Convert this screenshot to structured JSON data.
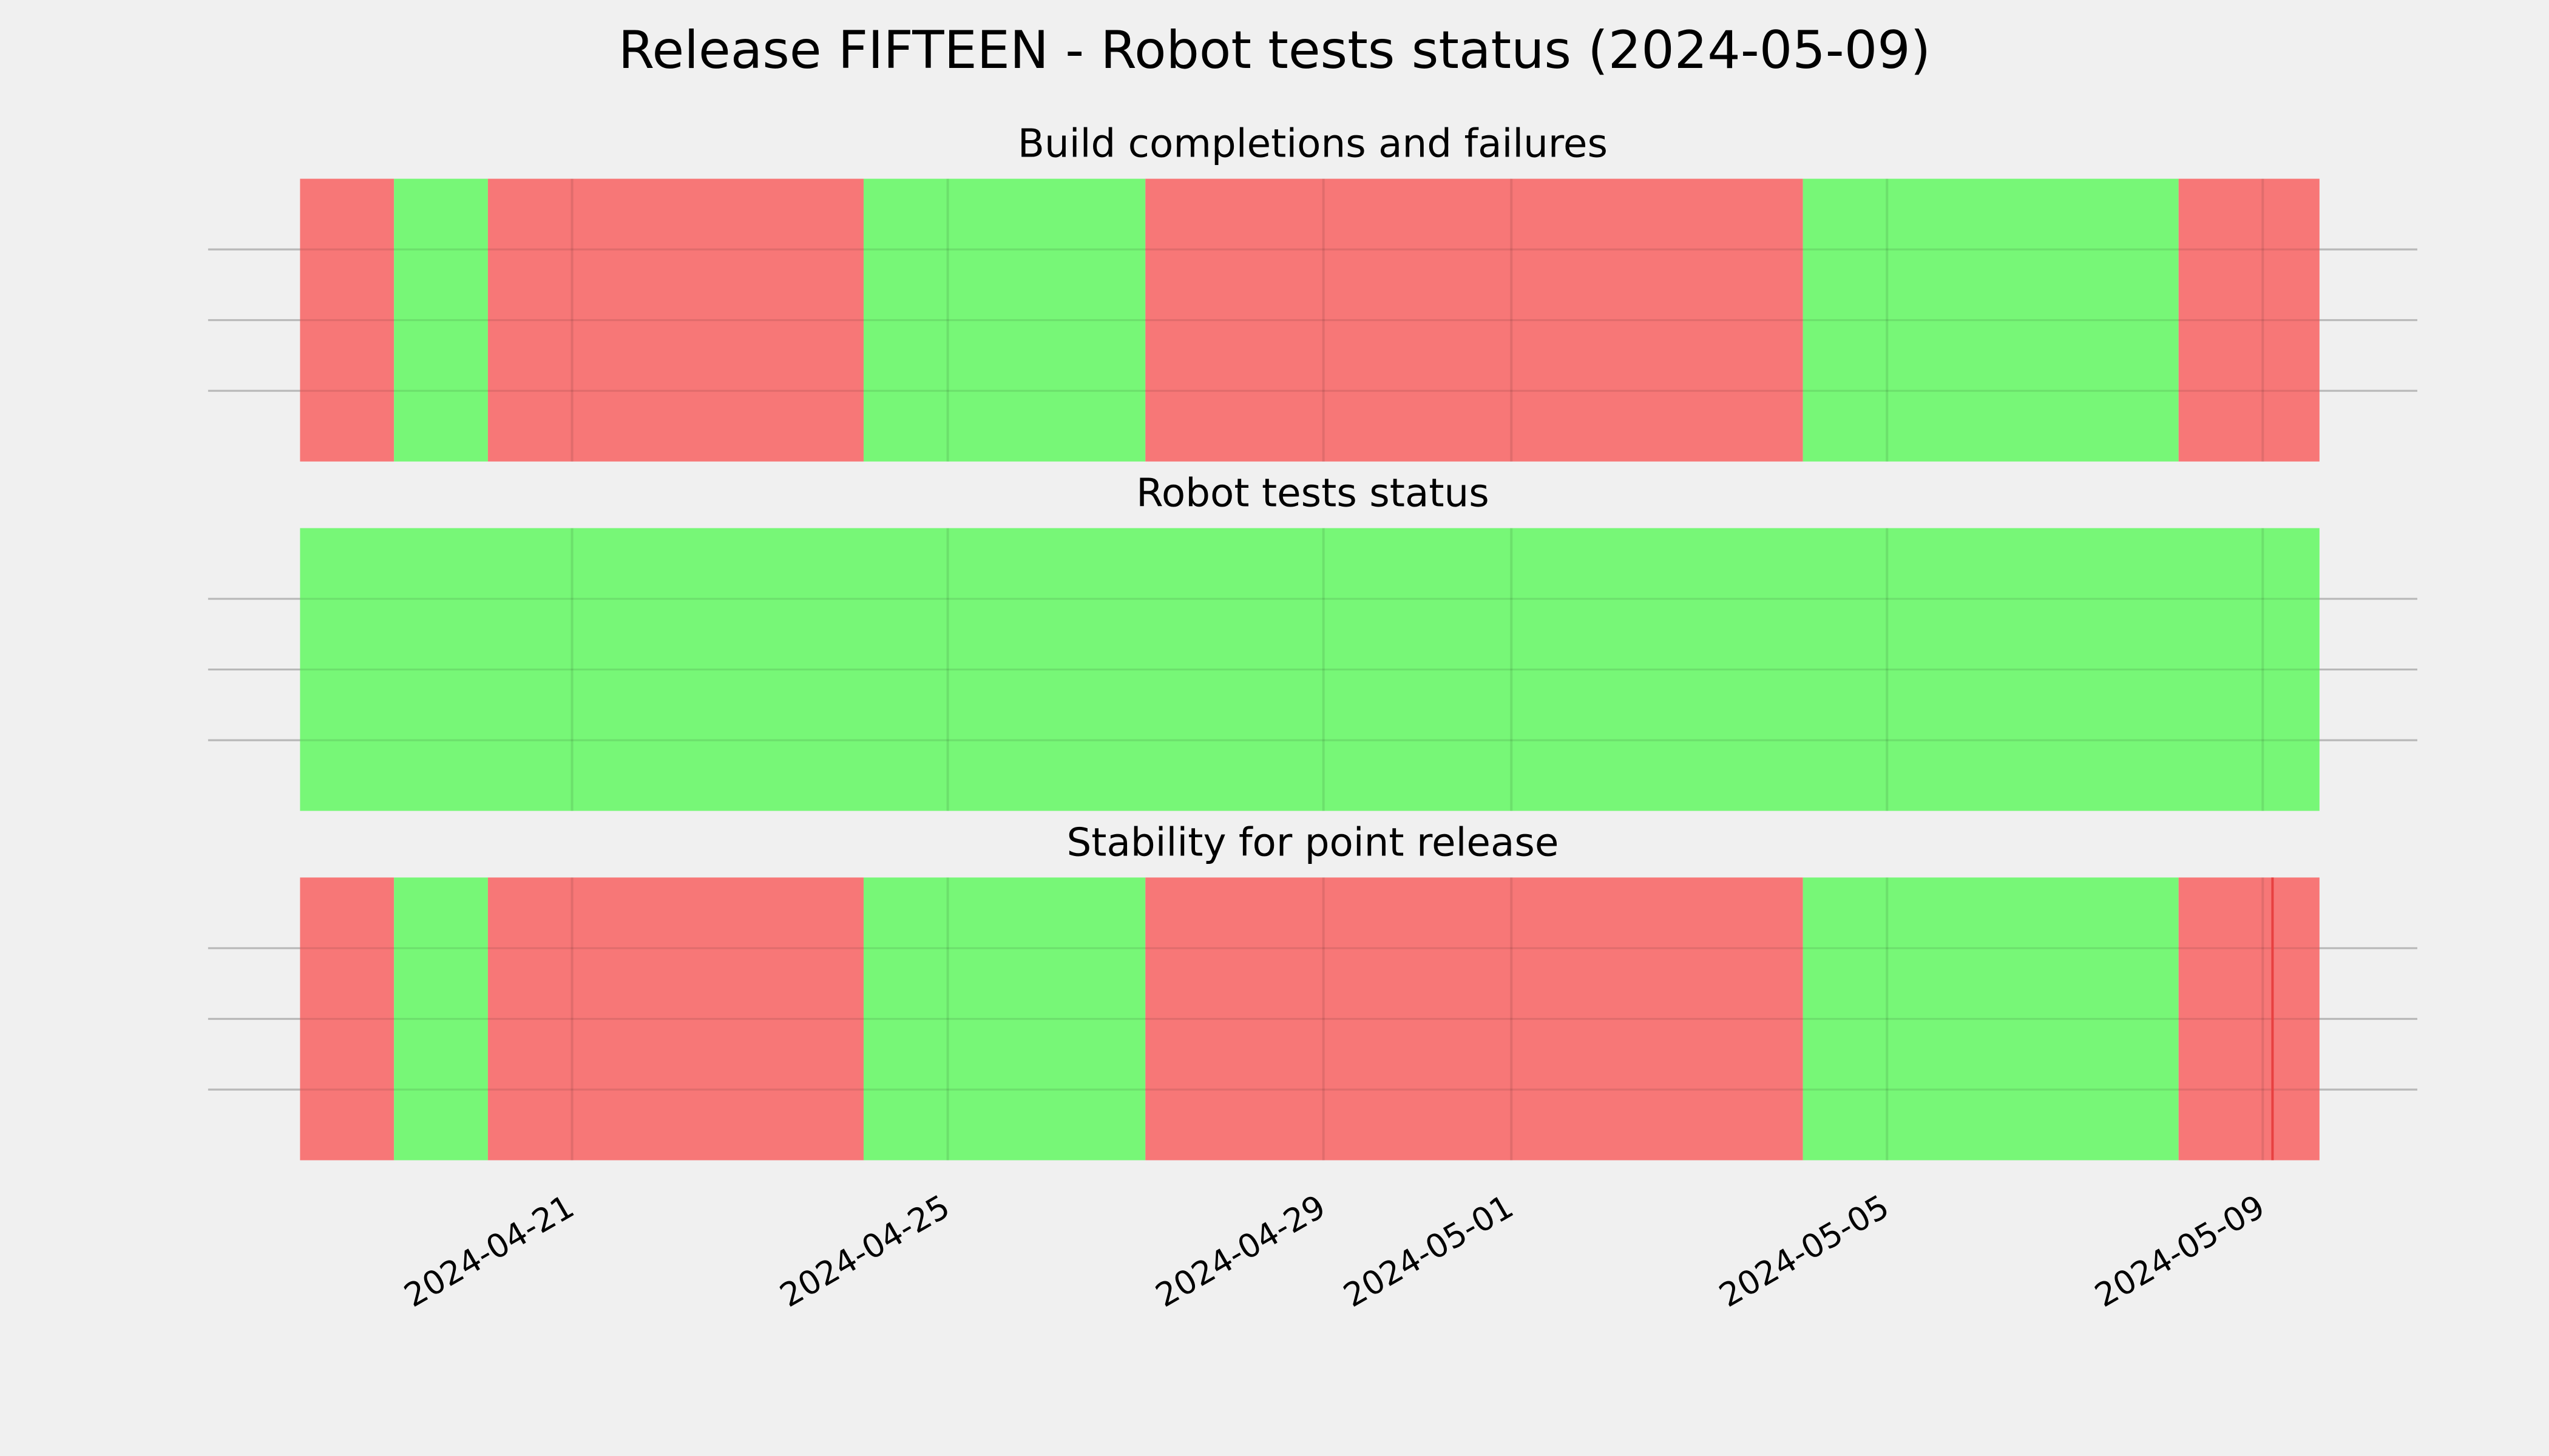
{
  "chart_data": {
    "title": "Release FIFTEEN - Robot tests status (2024-05-09)",
    "xlim": [
      "2024-04-17T03:00",
      "2024-05-10T15:30"
    ],
    "xticks": [
      "2024-04-21",
      "2024-04-25",
      "2024-04-29",
      "2024-05-01",
      "2024-05-05",
      "2024-05-09"
    ],
    "ylim": [
      0,
      1
    ],
    "yticks": [
      0.25,
      0.5,
      0.75
    ],
    "grid": true,
    "panels": [
      {
        "type": "timeline",
        "title": "Build completions and failures",
        "segments": [
          {
            "start": "2024-04-18T02:30",
            "end": "2024-04-19T02:30",
            "color": "#f77777"
          },
          {
            "start": "2024-04-19T02:30",
            "end": "2024-04-20T02:30",
            "color": "#77f777"
          },
          {
            "start": "2024-04-20T02:30",
            "end": "2024-04-24T02:30",
            "color": "#f77777"
          },
          {
            "start": "2024-04-24T02:30",
            "end": "2024-04-27T02:30",
            "color": "#77f777"
          },
          {
            "start": "2024-04-27T02:30",
            "end": "2024-05-04T02:30",
            "color": "#f77777"
          },
          {
            "start": "2024-05-04T02:30",
            "end": "2024-05-08T02:30",
            "color": "#77f777"
          },
          {
            "start": "2024-05-08T02:30",
            "end": "2024-05-09T14:30",
            "color": "#f77777"
          }
        ],
        "markers": []
      },
      {
        "type": "timeline",
        "title": "Robot tests status",
        "segments": [
          {
            "start": "2024-04-18T02:30",
            "end": "2024-05-09T14:30",
            "color": "#77f777"
          }
        ],
        "markers": []
      },
      {
        "type": "timeline",
        "title": "Stability for point release",
        "segments": [
          {
            "start": "2024-04-18T02:30",
            "end": "2024-04-19T02:30",
            "color": "#f77777"
          },
          {
            "start": "2024-04-19T02:30",
            "end": "2024-04-20T02:30",
            "color": "#77f777"
          },
          {
            "start": "2024-04-20T02:30",
            "end": "2024-04-24T02:30",
            "color": "#f77777"
          },
          {
            "start": "2024-04-24T02:30",
            "end": "2024-04-27T02:30",
            "color": "#77f777"
          },
          {
            "start": "2024-04-27T02:30",
            "end": "2024-05-04T02:30",
            "color": "#f77777"
          },
          {
            "start": "2024-05-04T02:30",
            "end": "2024-05-08T02:30",
            "color": "#77f777"
          },
          {
            "start": "2024-05-08T02:30",
            "end": "2024-05-09T14:30",
            "color": "#f77777"
          }
        ],
        "markers": [
          {
            "x": "2024-05-09T02:30",
            "color": "#e84040"
          }
        ]
      }
    ]
  }
}
